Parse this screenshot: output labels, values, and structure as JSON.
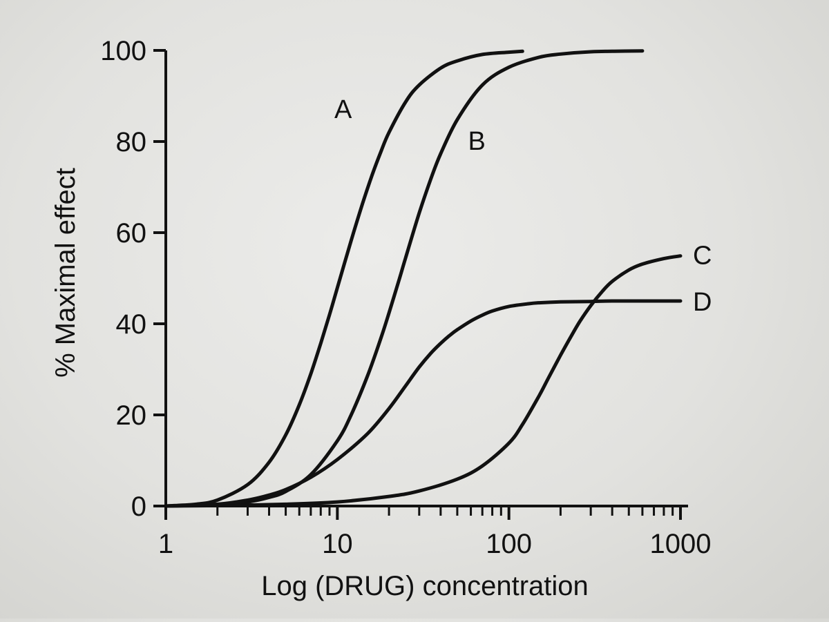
{
  "chart_data": {
    "type": "line",
    "title": "",
    "xlabel": "Log (DRUG) concentration",
    "ylabel": "% Maximal effect",
    "x_scale": "log",
    "xlim": [
      1,
      1000
    ],
    "ylim": [
      0,
      100
    ],
    "x_ticks": [
      1,
      10,
      100,
      1000
    ],
    "x_tick_labels": [
      "1",
      "10",
      "100",
      "1000"
    ],
    "y_ticks": [
      0,
      20,
      40,
      60,
      80,
      100
    ],
    "y_tick_labels": [
      "0",
      "20",
      "40",
      "60",
      "80",
      "100"
    ],
    "grid": false,
    "legend": "none",
    "series": [
      {
        "name": "A",
        "label": "A",
        "x": [
          1,
          1.5,
          2,
          3,
          4,
          5,
          6,
          7,
          8,
          9,
          10,
          12,
          14,
          16,
          18,
          20,
          25,
          30,
          40,
          50,
          70,
          100,
          120
        ],
        "y": [
          0,
          0.4,
          1.3,
          4.7,
          9.6,
          15.6,
          22.2,
          29,
          35.7,
          42,
          47.9,
          58.1,
          66.3,
          72.8,
          77.9,
          82,
          88.7,
          92.4,
          96.1,
          97.7,
          99.1,
          99.6,
          99.8
        ],
        "label_at": [
          10.8,
          87
        ]
      },
      {
        "name": "B",
        "label": "B",
        "x": [
          1,
          2,
          3,
          4,
          5,
          7,
          10,
          12,
          15,
          18,
          20,
          23,
          25,
          30,
          35,
          40,
          50,
          70,
          100,
          150,
          200,
          300,
          400,
          600
        ],
        "y": [
          0,
          0.3,
          0.9,
          1.9,
          3.2,
          6.9,
          14.3,
          19.9,
          28.6,
          37,
          42.4,
          49.9,
          54.5,
          64.3,
          71.7,
          77.3,
          84.8,
          92.4,
          96.3,
          98.5,
          99.2,
          99.7,
          99.8,
          99.9
        ],
        "label_at": [
          65,
          80
        ]
      },
      {
        "name": "C",
        "label": "C",
        "x": [
          1,
          2,
          5,
          10,
          20,
          30,
          50,
          70,
          100,
          120,
          150,
          170,
          200,
          230,
          260,
          300,
          350,
          400,
          500,
          600,
          800,
          1000
        ],
        "y": [
          0,
          0.1,
          0.4,
          0.9,
          2.1,
          3.3,
          5.9,
          8.8,
          13.8,
          17.9,
          24.2,
          28.1,
          33.1,
          37.2,
          40.6,
          44.0,
          47.1,
          49.3,
          51.8,
          53.1,
          54.3,
          54.9
        ],
        "label_at": [
          1000,
          55.2
        ]
      },
      {
        "name": "D",
        "label": "D",
        "x": [
          1,
          2,
          3,
          4,
          5,
          7,
          10,
          15,
          20,
          25,
          30,
          35,
          40,
          45,
          50,
          60,
          70,
          80,
          100,
          130,
          150,
          200,
          300,
          400,
          600,
          1000
        ],
        "y": [
          0,
          0.4,
          1.3,
          2.4,
          3.6,
          6.3,
          10.2,
          15.9,
          21.4,
          26.4,
          30.5,
          33.5,
          35.7,
          37.4,
          38.7,
          40.6,
          41.9,
          42.8,
          43.8,
          44.4,
          44.6,
          44.8,
          44.9,
          45,
          45,
          45
        ],
        "label_at": [
          1000,
          45
        ]
      }
    ]
  }
}
